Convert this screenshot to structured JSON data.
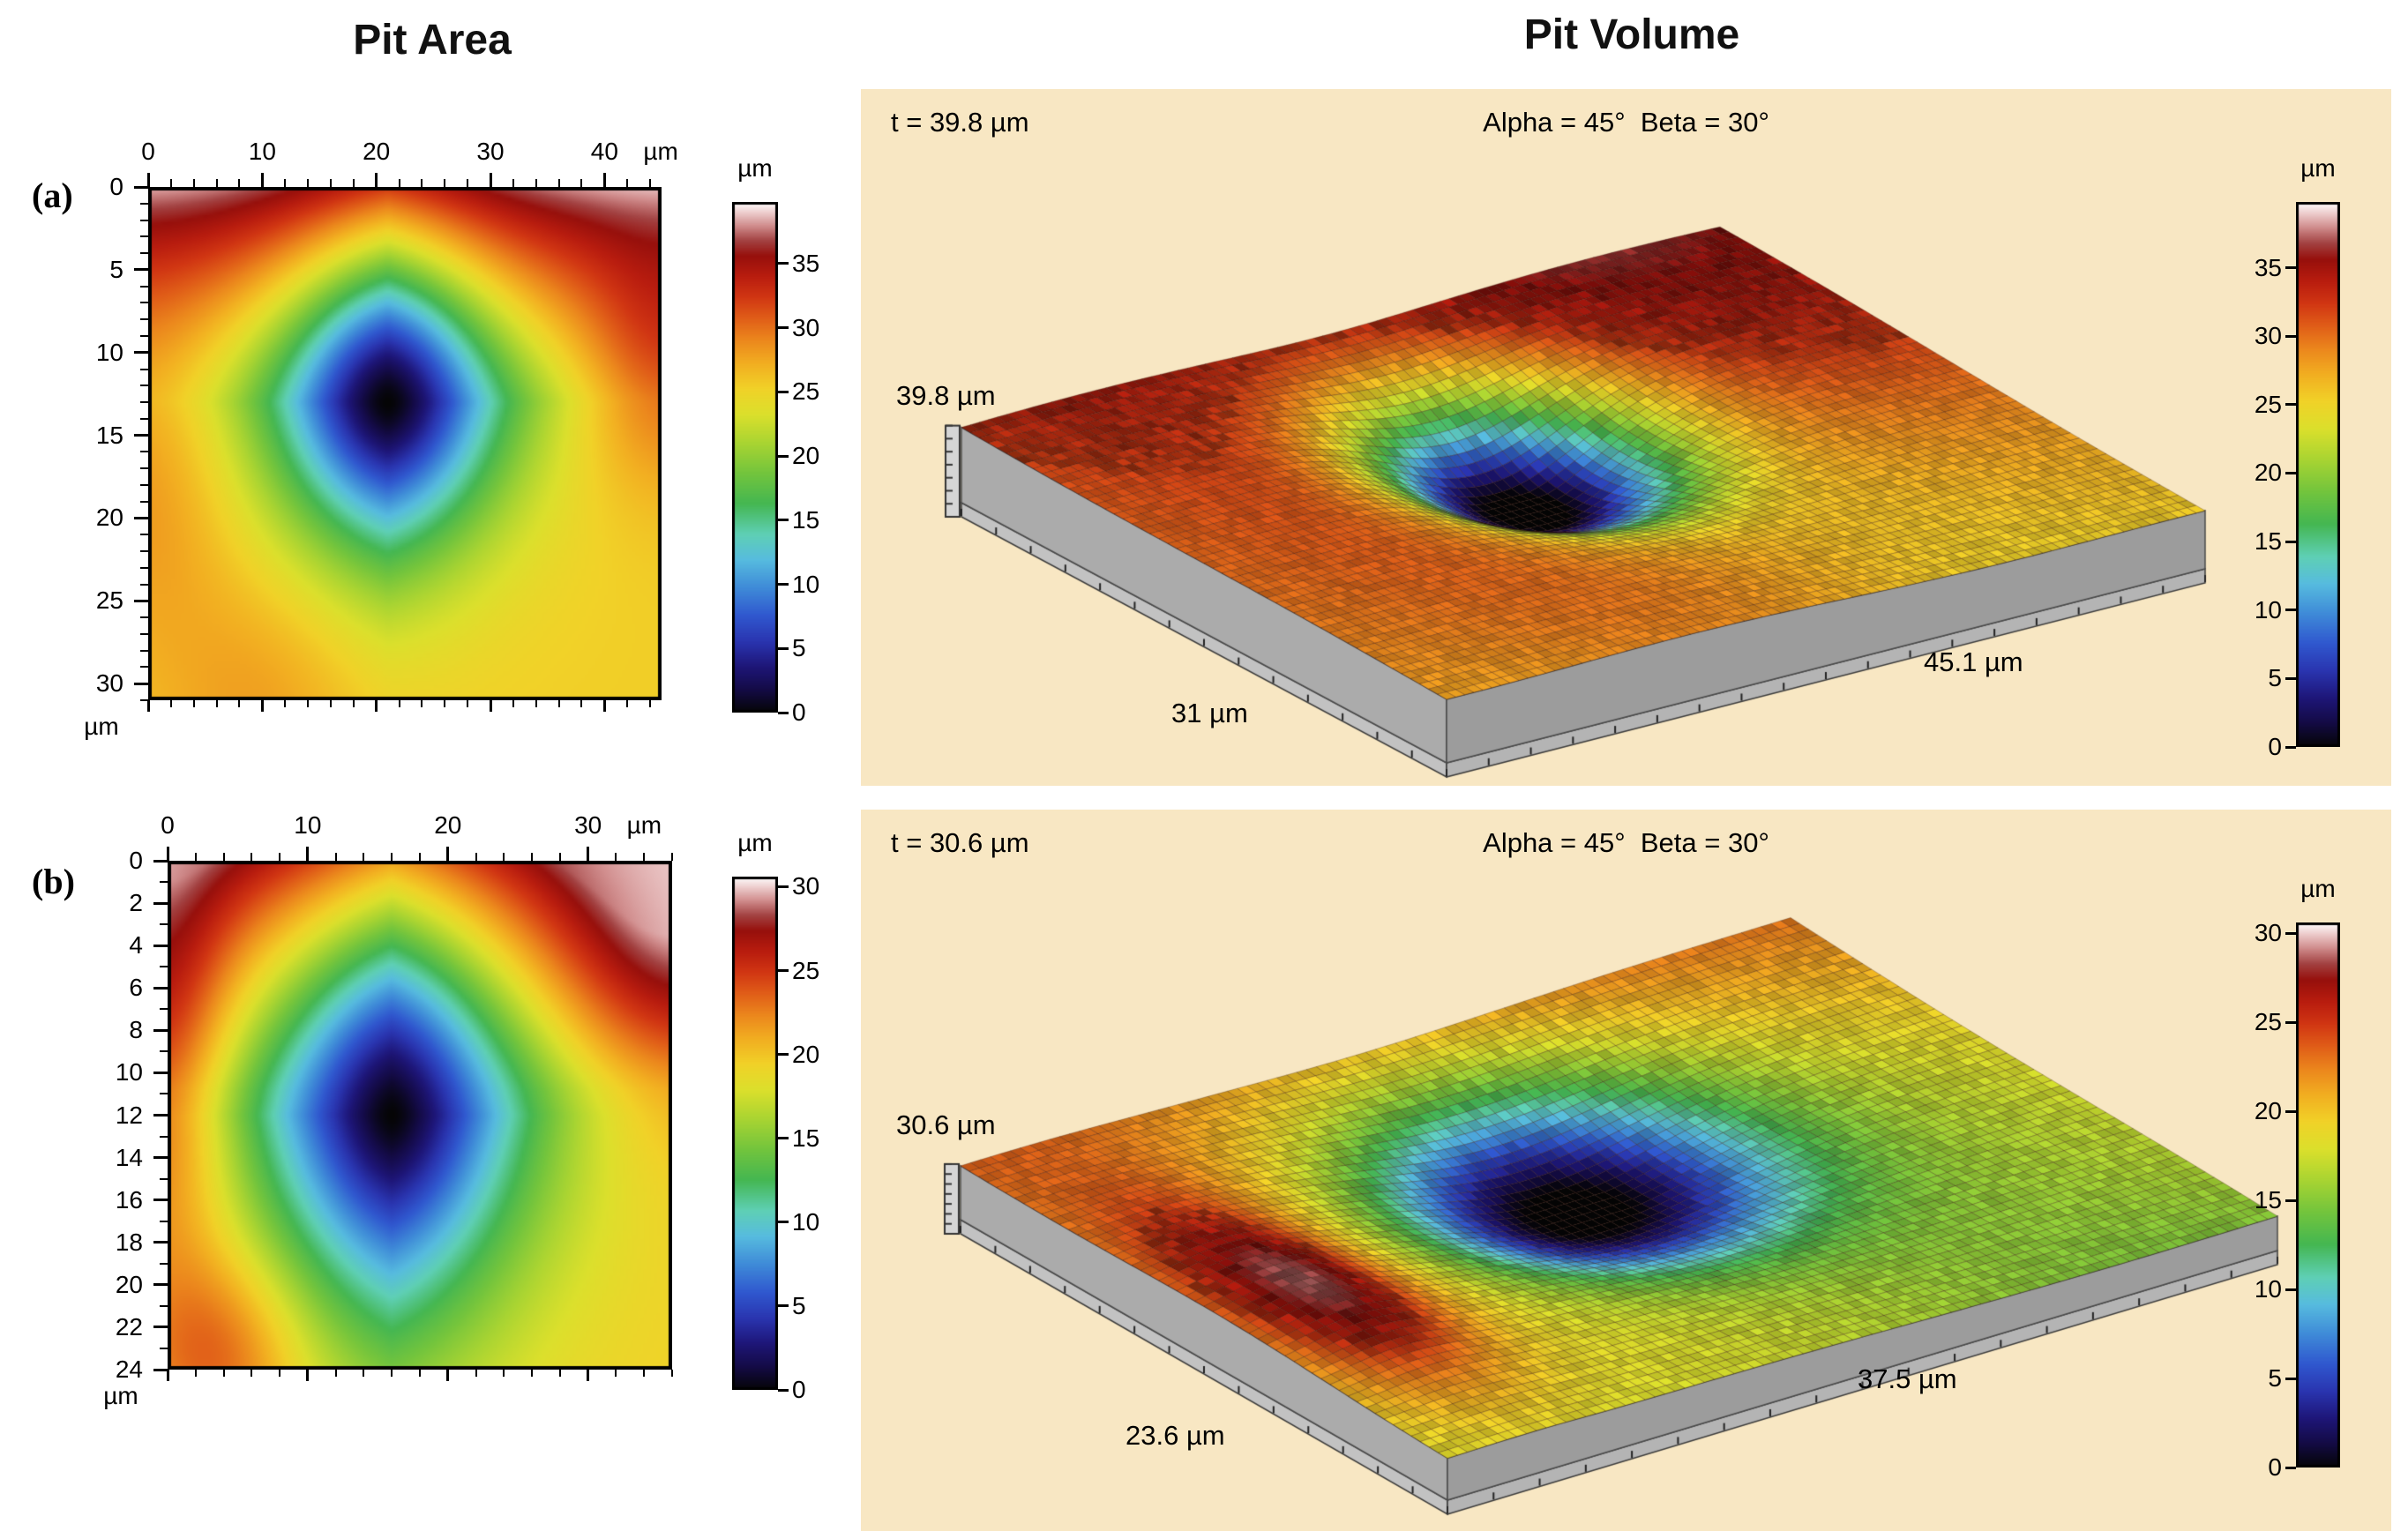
{
  "titles": {
    "left": "Pit Area",
    "right": "Pit Volume"
  },
  "panel_tags": {
    "a": "(a)",
    "b": "(b)"
  },
  "colormap": [
    {
      "t": 0.0,
      "c": "#050505"
    },
    {
      "t": 0.045,
      "c": "#140b45"
    },
    {
      "t": 0.09,
      "c": "#1e1678"
    },
    {
      "t": 0.14,
      "c": "#2a35b0"
    },
    {
      "t": 0.19,
      "c": "#3058cf"
    },
    {
      "t": 0.245,
      "c": "#3f8bd8"
    },
    {
      "t": 0.3,
      "c": "#57bcdf"
    },
    {
      "t": 0.35,
      "c": "#5fd0b5"
    },
    {
      "t": 0.41,
      "c": "#45b752"
    },
    {
      "t": 0.47,
      "c": "#74c53d"
    },
    {
      "t": 0.53,
      "c": "#abd532"
    },
    {
      "t": 0.585,
      "c": "#dce02c"
    },
    {
      "t": 0.635,
      "c": "#f1d228"
    },
    {
      "t": 0.685,
      "c": "#f2ae21"
    },
    {
      "t": 0.73,
      "c": "#ec881d"
    },
    {
      "t": 0.775,
      "c": "#e05c18"
    },
    {
      "t": 0.815,
      "c": "#d13613"
    },
    {
      "t": 0.855,
      "c": "#b91d0f"
    },
    {
      "t": 0.895,
      "c": "#97100c"
    },
    {
      "t": 0.925,
      "c": "#a34242"
    },
    {
      "t": 0.955,
      "c": "#d28f8f"
    },
    {
      "t": 0.98,
      "c": "#eecdcd"
    },
    {
      "t": 1.0,
      "c": "#ffffff"
    }
  ],
  "chart_data": [
    {
      "id": "heatmap-a",
      "type": "heatmap",
      "row": "a",
      "section": "Pit Area",
      "x_axis": {
        "unit": "µm",
        "ticks": [
          0,
          10,
          20,
          30,
          40
        ],
        "range": [
          0,
          45
        ],
        "minor_step": 2
      },
      "y_axis": {
        "unit": "µm",
        "ticks": [
          0,
          5,
          10,
          15,
          20,
          25,
          30
        ],
        "range": [
          0,
          31
        ],
        "minor_step": 1
      },
      "colorbar": {
        "unit": "µm",
        "ticks": [
          0,
          5,
          10,
          15,
          20,
          25,
          30,
          35
        ],
        "range": [
          0,
          39.8
        ]
      },
      "pit_center_um": [
        21,
        13
      ],
      "pit_depth_min_um": 0,
      "surface_level_um": [
        25,
        39
      ],
      "description": "2D depth map of corrosion pit; dark center ~0 µm at (21,13), yellow/green rings around pit, red rim ~30 µm, pink/white top surface ~36-39 µm"
    },
    {
      "id": "surface-a",
      "type": "surface3d",
      "row": "a",
      "section": "Pit Volume",
      "labels": {
        "t": "t = 39.8 µm",
        "angles": "Alpha = 45°  Beta = 30°",
        "thickness": "39.8 µm",
        "depth": "31 µm",
        "width": "45.1 µm"
      },
      "thickness_um": 39.8,
      "alpha_deg": 45,
      "beta_deg": 30,
      "width_um": 45.1,
      "depth_um": 31,
      "colorbar": {
        "unit": "µm",
        "ticks": [
          0,
          5,
          10,
          15,
          20,
          25,
          30,
          35
        ],
        "range": [
          0,
          39.8
        ]
      },
      "description": "3D surface of 45.1 x 31 µm sample, thickness 39.8 µm, pit funnel to 0 µm left of center, dark-red high back surface, gray slab sides"
    },
    {
      "id": "heatmap-b",
      "type": "heatmap",
      "row": "b",
      "section": "Pit Area",
      "x_axis": {
        "unit": "µm",
        "ticks": [
          0,
          10,
          20,
          30
        ],
        "range": [
          0,
          36
        ],
        "minor_step": 2
      },
      "y_axis": {
        "unit": "µm",
        "ticks": [
          0,
          2,
          4,
          6,
          8,
          10,
          12,
          14,
          16,
          18,
          20,
          22,
          24
        ],
        "range": [
          0,
          24
        ],
        "minor_step": 1
      },
      "colorbar": {
        "unit": "µm",
        "ticks": [
          0,
          5,
          10,
          15,
          20,
          25,
          30
        ],
        "range": [
          0,
          30.6
        ]
      },
      "pit_center_um": [
        16,
        12
      ],
      "pit_depth_min_um": 0,
      "surface_level_um": [
        19,
        30
      ],
      "description": "2D depth map; large dark-blue pit centered ~(16,12), cyan/green rings, yellow field ~17-20 µm, red band ~25 µm, pink corners ~29-30 µm"
    },
    {
      "id": "surface-b",
      "type": "surface3d",
      "row": "b",
      "section": "Pit Volume",
      "labels": {
        "t": "t = 30.6 µm",
        "angles": "Alpha = 45°  Beta = 30°",
        "thickness": "30.6 µm",
        "depth": "23.6 µm",
        "width": "37.5 µm"
      },
      "thickness_um": 30.6,
      "alpha_deg": 45,
      "beta_deg": 30,
      "width_um": 37.5,
      "depth_um": 23.6,
      "colorbar": {
        "unit": "µm",
        "ticks": [
          0,
          5,
          10,
          15,
          20,
          25,
          30
        ],
        "range": [
          0,
          30.6
        ]
      },
      "description": "3D surface of 37.5 x 23.6 µm sample, thickness 30.6 µm, wide blue pit center, green/yellow surround, pink-white streak on front-left slope, gray slab sides"
    }
  ]
}
